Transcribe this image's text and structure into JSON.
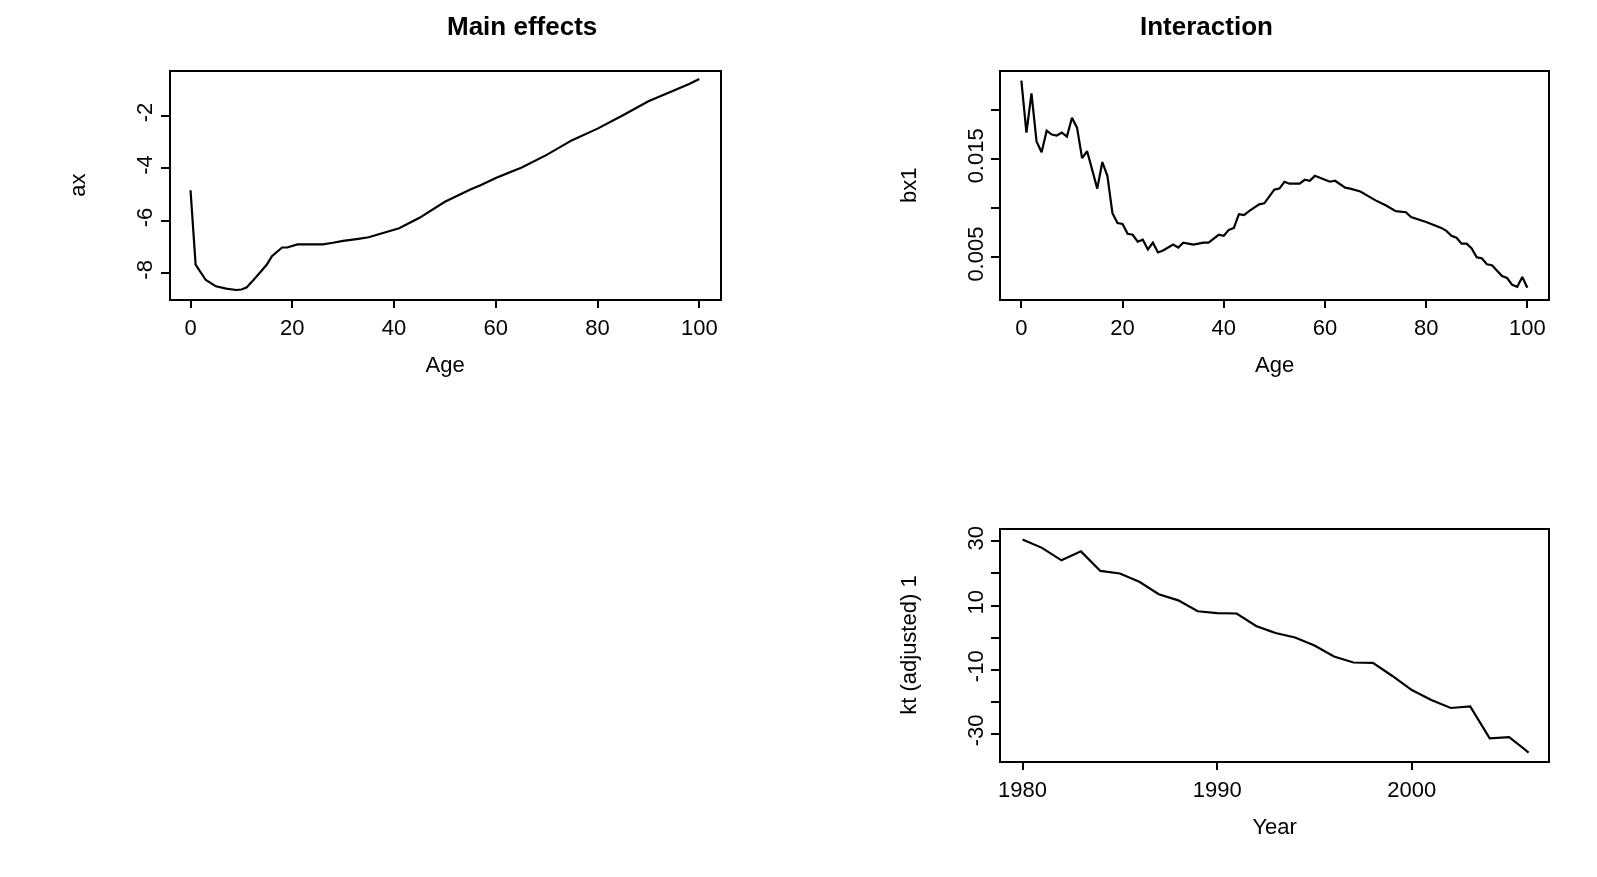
{
  "chart_data": [
    {
      "type": "line",
      "title": "Main effects",
      "xlabel": "Age",
      "ylabel": "ax",
      "x": [
        0,
        1,
        3,
        5,
        7,
        9,
        10,
        11,
        12,
        14,
        15,
        16,
        18,
        19,
        21,
        26,
        28,
        30,
        33,
        35,
        38,
        41,
        45,
        50,
        55,
        57,
        60,
        65,
        70,
        75,
        80,
        85,
        90,
        95,
        98,
        100
      ],
      "series": [
        {
          "color": "#000000",
          "values": [
            -4.84,
            -7.67,
            -8.26,
            -8.5,
            -8.59,
            -8.64,
            -8.62,
            -8.55,
            -8.34,
            -7.9,
            -7.67,
            -7.35,
            -7.02,
            -7.02,
            -6.9,
            -6.9,
            -6.84,
            -6.77,
            -6.69,
            -6.63,
            -6.46,
            -6.29,
            -5.89,
            -5.28,
            -4.81,
            -4.65,
            -4.37,
            -3.98,
            -3.49,
            -2.93,
            -2.49,
            -1.98,
            -1.45,
            -1.04,
            -0.79,
            -0.6
          ]
        }
      ],
      "xlim": [
        -3.9,
        104
      ],
      "ylim": [
        -8.97,
        -0.32
      ],
      "xticks": [
        0,
        20,
        40,
        60,
        80,
        100
      ],
      "yticks": [
        -8,
        -6,
        -4,
        -2
      ],
      "marker": "none",
      "line_style": "solid"
    },
    {
      "type": "line",
      "title": "Interaction",
      "xlabel": "Age",
      "ylabel": "bx1",
      "x": [
        0,
        1,
        2,
        3,
        4,
        5,
        6,
        7,
        8,
        9,
        10,
        11,
        12,
        13,
        15,
        16,
        17,
        18,
        19,
        20,
        21,
        22,
        23,
        24,
        25,
        26,
        27,
        28,
        30,
        31,
        32,
        34,
        36,
        37,
        39,
        40,
        41,
        42,
        43,
        44,
        45,
        47,
        48,
        50,
        51,
        52,
        53,
        55,
        56,
        57,
        58,
        60,
        61,
        62,
        64,
        65,
        67,
        70,
        72,
        74,
        76,
        77,
        80,
        81,
        83,
        84,
        85,
        86,
        87,
        88,
        89,
        90,
        91,
        92,
        93,
        95,
        96,
        97,
        98,
        99,
        100
      ],
      "series": [
        {
          "color": "#000000",
          "values": [
            0.023,
            0.0177,
            0.0217,
            0.0168,
            0.0157,
            0.0179,
            0.0175,
            0.0174,
            0.0177,
            0.0173,
            0.0192,
            0.0182,
            0.0151,
            0.0158,
            0.012,
            0.0147,
            0.0133,
            0.0095,
            0.0085,
            0.0084,
            0.0074,
            0.0073,
            0.0066,
            0.0068,
            0.0058,
            0.0065,
            0.0055,
            0.0057,
            0.0063,
            0.006,
            0.0065,
            0.0063,
            0.0065,
            0.0065,
            0.0073,
            0.0072,
            0.0078,
            0.008,
            0.0094,
            0.0093,
            0.0097,
            0.0104,
            0.0105,
            0.0119,
            0.012,
            0.0127,
            0.0125,
            0.0125,
            0.0129,
            0.0128,
            0.0133,
            0.0129,
            0.0127,
            0.0128,
            0.0121,
            0.012,
            0.0117,
            0.0108,
            0.0103,
            0.0097,
            0.0096,
            0.0091,
            0.0086,
            0.0084,
            0.008,
            0.0077,
            0.0072,
            0.007,
            0.0064,
            0.0064,
            0.0059,
            0.005,
            0.0049,
            0.0043,
            0.0042,
            0.0031,
            0.0029,
            0.0022,
            0.002,
            0.003,
            0.0019
          ]
        }
      ],
      "xlim": [
        -4,
        104.1
      ],
      "ylim": [
        0.0008,
        0.0239
      ],
      "xticks": [
        0,
        20,
        40,
        60,
        80,
        100
      ],
      "yticks": [
        {
          "value": 0.005,
          "label": "0.005"
        },
        {
          "value": 0.01,
          "label": null
        },
        {
          "value": 0.015,
          "label": "0.015"
        },
        {
          "value": 0.02,
          "label": null
        }
      ],
      "marker": "none",
      "line_style": "solid"
    },
    {
      "type": "line",
      "xlabel": "Year",
      "ylabel": "kt (adjusted) 1",
      "x": [
        1980,
        1981,
        1982,
        1983,
        1984,
        1985,
        1986,
        1987,
        1988,
        1989,
        1990,
        1991,
        1992,
        1993,
        1994,
        1995,
        1996,
        1997,
        1998,
        1999,
        2000,
        2001,
        2002,
        2003,
        2004,
        2005,
        2006
      ],
      "series": [
        {
          "color": "#000000",
          "values": [
            30.6,
            28.0,
            24.1,
            26.9,
            20.8,
            20.0,
            17.4,
            13.5,
            11.6,
            8.2,
            7.6,
            7.5,
            3.6,
            1.4,
            0,
            -2.5,
            -5.9,
            -7.8,
            -7.9,
            -12.0,
            -16.4,
            -19.5,
            -22.0,
            -21.5,
            -31.5,
            -31.1,
            -35.9
          ]
        }
      ],
      "xlim": [
        1978.9,
        2007.0
      ],
      "ylim": [
        -38.4,
        33.7
      ],
      "xticks": [
        1980,
        1990,
        2000
      ],
      "yticks": [
        {
          "value": -30,
          "label": "-30"
        },
        {
          "value": -20,
          "label": null
        },
        {
          "value": -10,
          "label": "-10"
        },
        {
          "value": 0,
          "label": null
        },
        {
          "value": 10,
          "label": "10"
        },
        {
          "value": 20,
          "label": null
        },
        {
          "value": 30,
          "label": "30"
        }
      ],
      "marker": "none",
      "line_style": "solid"
    }
  ]
}
